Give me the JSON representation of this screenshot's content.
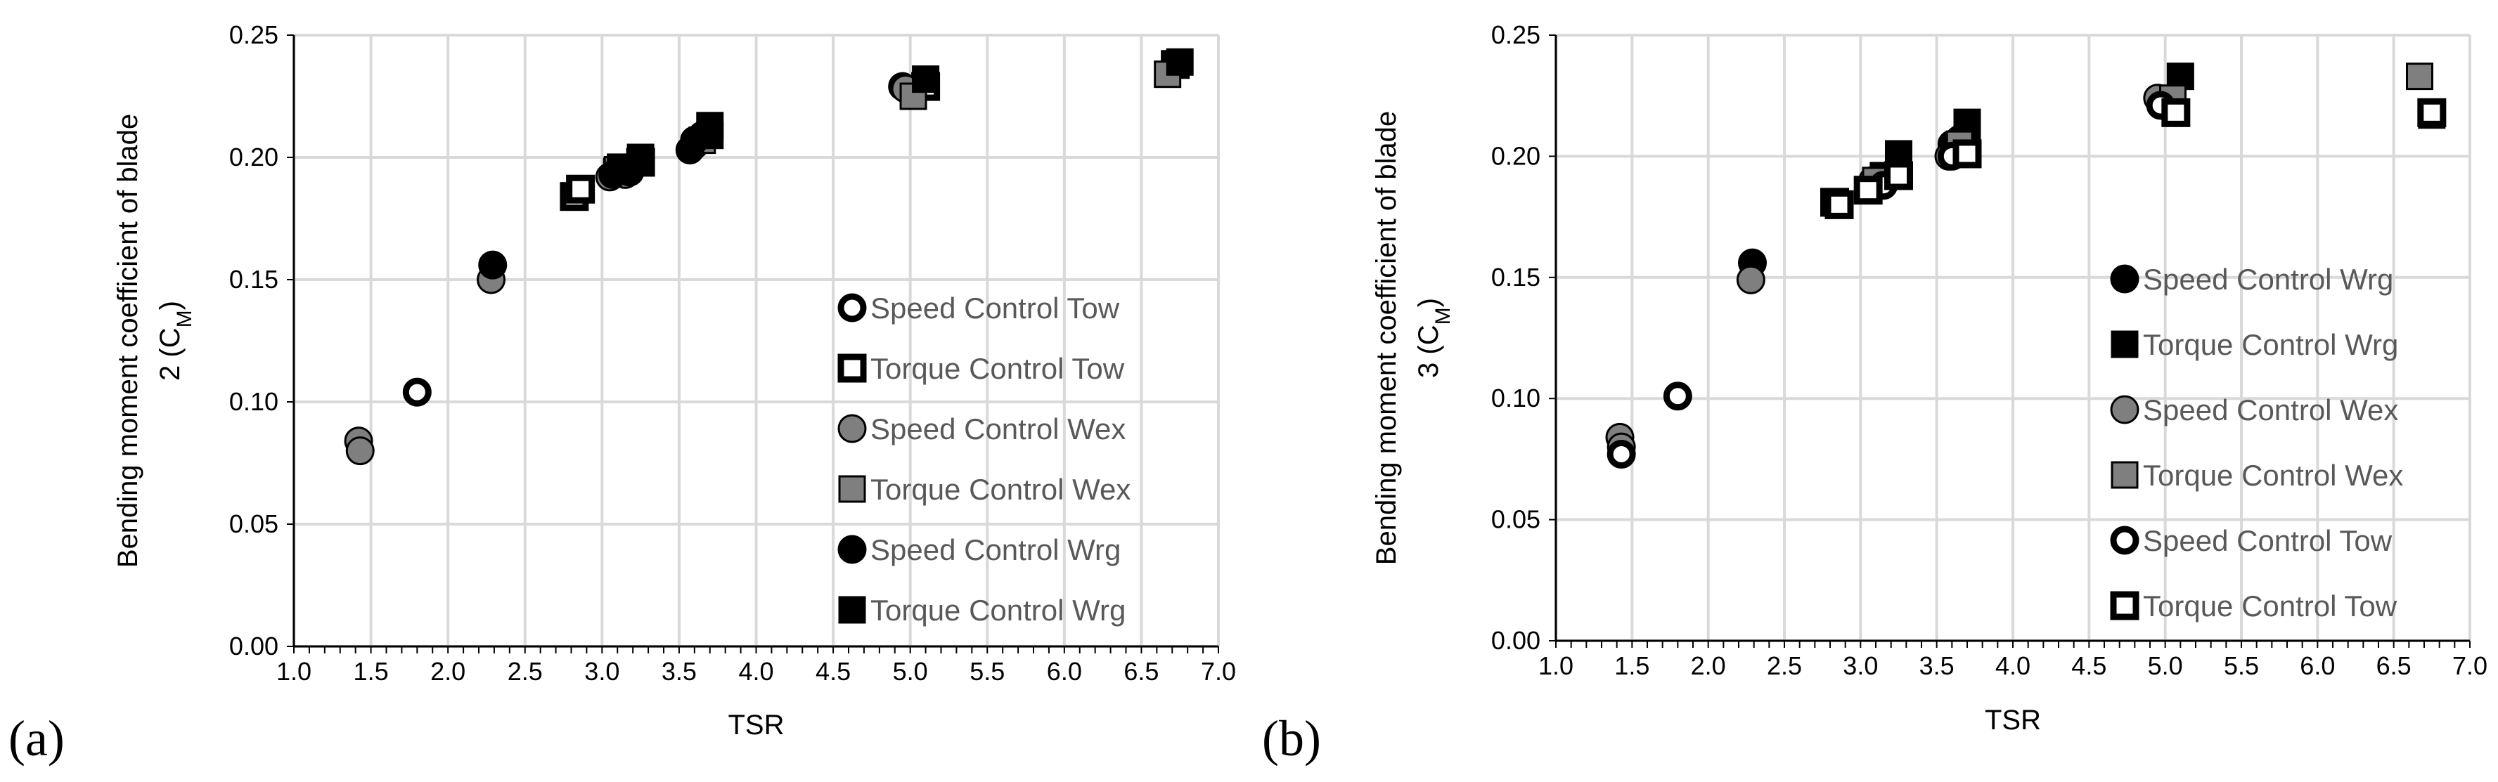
{
  "chart_data": [
    {
      "type": "scatter",
      "panel_label": "(a)",
      "xlabel": "TSR",
      "ylabel_line1": "Bending moment coefficient of blade",
      "ylabel_line2": "2 (C",
      "ylabel_sub": "M",
      "ylabel_close": ")",
      "xlim": [
        1.0,
        7.0
      ],
      "ylim": [
        0.0,
        0.25
      ],
      "xticks": [
        "1.0",
        "1.5",
        "2.0",
        "2.5",
        "3.0",
        "3.5",
        "4.0",
        "4.5",
        "5.0",
        "5.5",
        "6.0",
        "6.5",
        "7.0"
      ],
      "yticks": [
        "0.00",
        "0.05",
        "0.10",
        "0.15",
        "0.20",
        "0.25"
      ],
      "grid": true,
      "legend_position": "right",
      "series": [
        {
          "name": "Speed Control Tow",
          "marker": "circle",
          "fill": "#ffffff",
          "text_color": "#595959",
          "points": [
            [
              1.8,
              0.104
            ],
            [
              4.95,
              0.229
            ]
          ]
        },
        {
          "name": "Torque Control Tow",
          "marker": "square",
          "fill": "#ffffff",
          "text_color": "#595959",
          "points": [
            [
              2.82,
              0.184
            ],
            [
              2.86,
              0.187
            ],
            [
              3.1,
              0.194
            ],
            [
              3.25,
              0.198
            ],
            [
              5.1,
              0.229
            ],
            [
              6.72,
              0.238
            ]
          ]
        },
        {
          "name": "Speed Control Wex",
          "marker": "circle",
          "fill": "#7f7f7f",
          "text_color": "#595959",
          "points": [
            [
              1.42,
              0.084
            ],
            [
              1.43,
              0.08
            ],
            [
              2.28,
              0.15
            ],
            [
              3.05,
              0.192
            ],
            [
              3.15,
              0.193
            ],
            [
              3.6,
              0.205
            ],
            [
              4.97,
              0.228
            ]
          ]
        },
        {
          "name": "Torque Control Wex",
          "marker": "square",
          "fill": "#7f7f7f",
          "text_color": "#595959",
          "points": [
            [
              3.1,
              0.195
            ],
            [
              3.65,
              0.207
            ],
            [
              5.02,
              0.225
            ],
            [
              6.67,
              0.234
            ]
          ]
        },
        {
          "name": "Speed Control Wrg",
          "marker": "circle",
          "fill": "#000000",
          "text_color": "#595959",
          "points": [
            [
              2.29,
              0.156
            ],
            [
              3.07,
              0.193
            ],
            [
              3.18,
              0.194
            ],
            [
              3.57,
              0.203
            ],
            [
              3.6,
              0.207
            ],
            [
              3.65,
              0.209
            ]
          ]
        },
        {
          "name": "Torque Control Wrg",
          "marker": "square",
          "fill": "#000000",
          "text_color": "#595959",
          "points": [
            [
              3.12,
              0.196
            ],
            [
              3.25,
              0.2
            ],
            [
              3.7,
              0.209
            ],
            [
              3.7,
              0.213
            ],
            [
              5.1,
              0.232
            ],
            [
              6.75,
              0.239
            ]
          ]
        }
      ]
    },
    {
      "type": "scatter",
      "panel_label": "(b)",
      "xlabel": "TSR",
      "xlabel_color": "#7f7f7f",
      "ylabel_line1": "Bending moment coefficient of blade",
      "ylabel_line2": "3 (C",
      "ylabel_sub": "M",
      "ylabel_close": ")",
      "xlim": [
        1.0,
        7.0
      ],
      "ylim": [
        0.0,
        0.25
      ],
      "xticks": [
        "1.0",
        "1.5",
        "2.0",
        "2.5",
        "3.0",
        "3.5",
        "4.0",
        "4.5",
        "5.0",
        "5.5",
        "6.0",
        "6.5",
        "7.0"
      ],
      "yticks": [
        "0.00",
        "0.05",
        "0.10",
        "0.15",
        "0.20",
        "0.25"
      ],
      "grid": true,
      "legend_position": "right",
      "series": [
        {
          "name": "Speed Control Wrg",
          "marker": "circle",
          "fill": "#000000",
          "text_color": "#595959",
          "points": [
            [
              2.29,
              0.156
            ],
            [
              3.6,
              0.205
            ],
            [
              3.65,
              0.207
            ]
          ]
        },
        {
          "name": "Torque Control Wrg",
          "marker": "square",
          "fill": "#000000",
          "text_color": "#595959",
          "points": [
            [
              3.15,
              0.192
            ],
            [
              3.25,
              0.201
            ],
            [
              3.7,
              0.21
            ],
            [
              3.7,
              0.214
            ],
            [
              5.1,
              0.233
            ],
            [
              6.75,
              0.217
            ]
          ]
        },
        {
          "name": "Speed Control Wex",
          "marker": "circle",
          "fill": "#7f7f7f",
          "text_color": "#595959",
          "points": [
            [
              1.42,
              0.084
            ],
            [
              1.43,
              0.08
            ],
            [
              2.28,
              0.149
            ],
            [
              3.08,
              0.19
            ],
            [
              3.58,
              0.2
            ],
            [
              4.95,
              0.224
            ]
          ]
        },
        {
          "name": "Torque Control Wex",
          "marker": "square",
          "fill": "#7f7f7f",
          "text_color": "#595959",
          "points": [
            [
              3.1,
              0.19
            ],
            [
              3.65,
              0.205
            ],
            [
              5.05,
              0.224
            ],
            [
              6.67,
              0.233
            ]
          ]
        },
        {
          "name": "Speed Control Tow",
          "marker": "circle",
          "fill": "#ffffff",
          "text_color": "#595959",
          "points": [
            [
              1.43,
              0.077
            ],
            [
              1.8,
              0.101
            ],
            [
              3.15,
              0.188
            ],
            [
              3.6,
              0.2
            ],
            [
              4.97,
              0.221
            ]
          ]
        },
        {
          "name": "Torque Control Tow",
          "marker": "square",
          "fill": "#ffffff",
          "text_color": "#595959",
          "points": [
            [
              2.83,
              0.181
            ],
            [
              2.86,
              0.18
            ],
            [
              3.05,
              0.186
            ],
            [
              3.25,
              0.192
            ],
            [
              3.7,
              0.201
            ],
            [
              5.07,
              0.218
            ],
            [
              6.75,
              0.218
            ]
          ]
        }
      ]
    }
  ]
}
